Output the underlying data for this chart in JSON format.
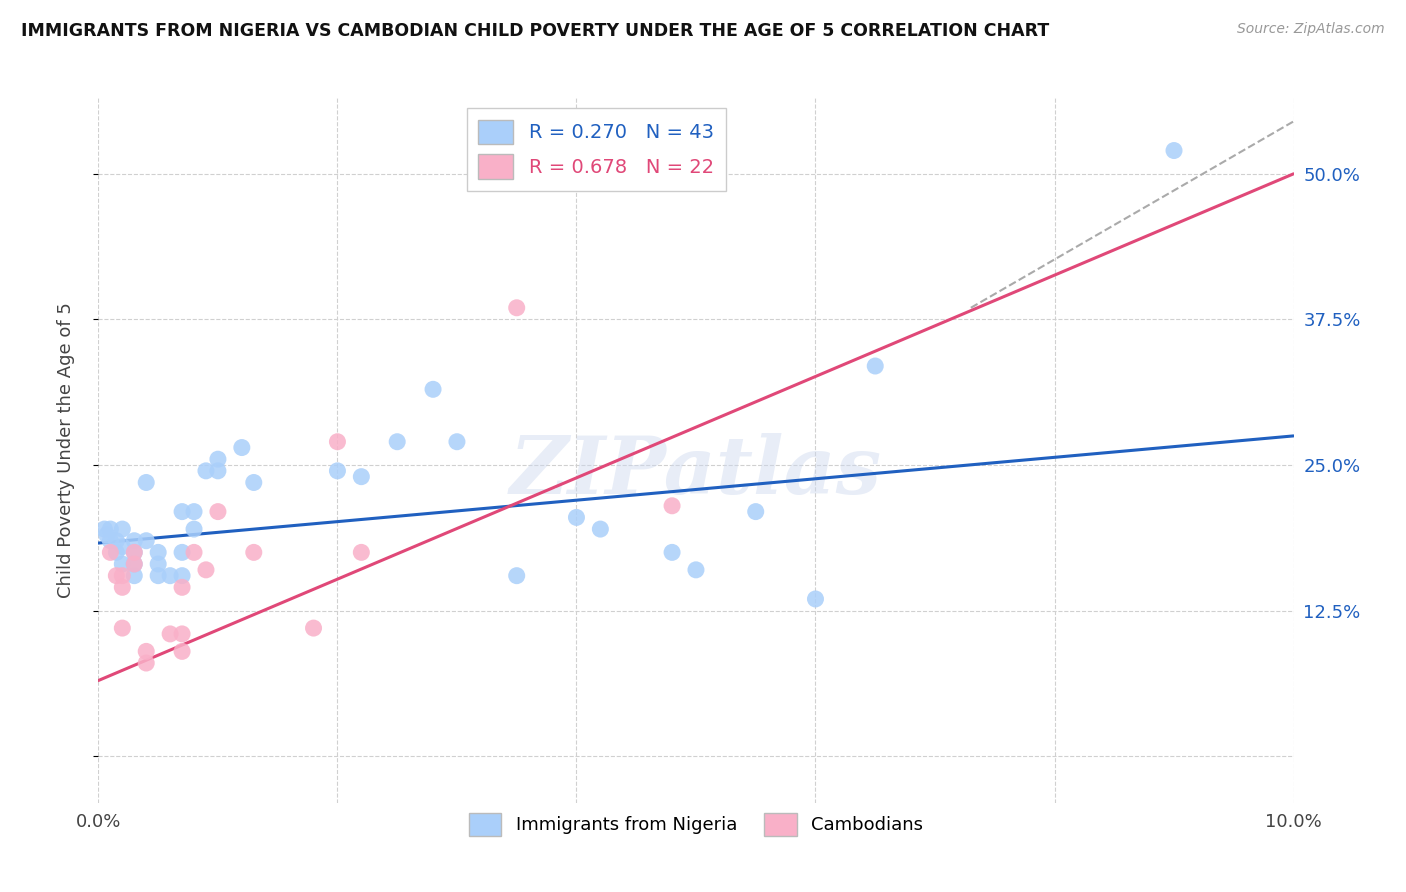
{
  "title": "IMMIGRANTS FROM NIGERIA VS CAMBODIAN CHILD POVERTY UNDER THE AGE OF 5 CORRELATION CHART",
  "source": "Source: ZipAtlas.com",
  "ylabel": "Child Poverty Under the Age of 5",
  "ytick_vals": [
    0.0,
    0.125,
    0.25,
    0.375,
    0.5
  ],
  "ytick_labels": [
    "",
    "12.5%",
    "25.0%",
    "37.5%",
    "50.0%"
  ],
  "xmin": 0.0,
  "xmax": 0.1,
  "ymin": -0.04,
  "ymax": 0.565,
  "nigeria_R": "0.270",
  "nigeria_N": "43",
  "cambodian_R": "0.678",
  "cambodian_N": "22",
  "nigeria_color": "#aacffa",
  "cambodian_color": "#f9b0c8",
  "nigeria_line_color": "#2060c0",
  "cambodian_line_color": "#e04878",
  "background_color": "#ffffff",
  "grid_color": "#d0d0d0",
  "watermark_text": "ZIPatlas",
  "legend1_label": "Immigrants from Nigeria",
  "legend2_label": "Cambodians",
  "nigeria_x": [
    0.0005,
    0.0007,
    0.001,
    0.001,
    0.0015,
    0.0015,
    0.002,
    0.002,
    0.002,
    0.003,
    0.003,
    0.003,
    0.003,
    0.004,
    0.004,
    0.005,
    0.005,
    0.005,
    0.006,
    0.007,
    0.007,
    0.007,
    0.008,
    0.008,
    0.009,
    0.01,
    0.01,
    0.012,
    0.013,
    0.02,
    0.022,
    0.025,
    0.028,
    0.03,
    0.035,
    0.04,
    0.042,
    0.048,
    0.05,
    0.055,
    0.06,
    0.065,
    0.09
  ],
  "nigeria_y": [
    0.195,
    0.19,
    0.195,
    0.185,
    0.185,
    0.175,
    0.195,
    0.18,
    0.165,
    0.185,
    0.175,
    0.165,
    0.155,
    0.235,
    0.185,
    0.175,
    0.165,
    0.155,
    0.155,
    0.21,
    0.175,
    0.155,
    0.21,
    0.195,
    0.245,
    0.255,
    0.245,
    0.265,
    0.235,
    0.245,
    0.24,
    0.27,
    0.315,
    0.27,
    0.155,
    0.205,
    0.195,
    0.175,
    0.16,
    0.21,
    0.135,
    0.335,
    0.52
  ],
  "cambodian_x": [
    0.001,
    0.0015,
    0.002,
    0.002,
    0.002,
    0.003,
    0.003,
    0.004,
    0.004,
    0.006,
    0.007,
    0.007,
    0.007,
    0.008,
    0.009,
    0.01,
    0.013,
    0.018,
    0.02,
    0.022,
    0.035,
    0.048
  ],
  "cambodian_y": [
    0.175,
    0.155,
    0.155,
    0.145,
    0.11,
    0.175,
    0.165,
    0.09,
    0.08,
    0.105,
    0.09,
    0.105,
    0.145,
    0.175,
    0.16,
    0.21,
    0.175,
    0.11,
    0.27,
    0.175,
    0.385,
    0.215
  ],
  "nigeria_trendline_x": [
    0.0,
    0.1
  ],
  "nigeria_trendline_y": [
    0.183,
    0.275
  ],
  "cambodian_trendline_x": [
    0.0,
    0.1
  ],
  "cambodian_trendline_y": [
    0.065,
    0.5
  ],
  "dash_line_x": [
    0.073,
    0.1
  ],
  "dash_line_y": [
    0.385,
    0.545
  ]
}
